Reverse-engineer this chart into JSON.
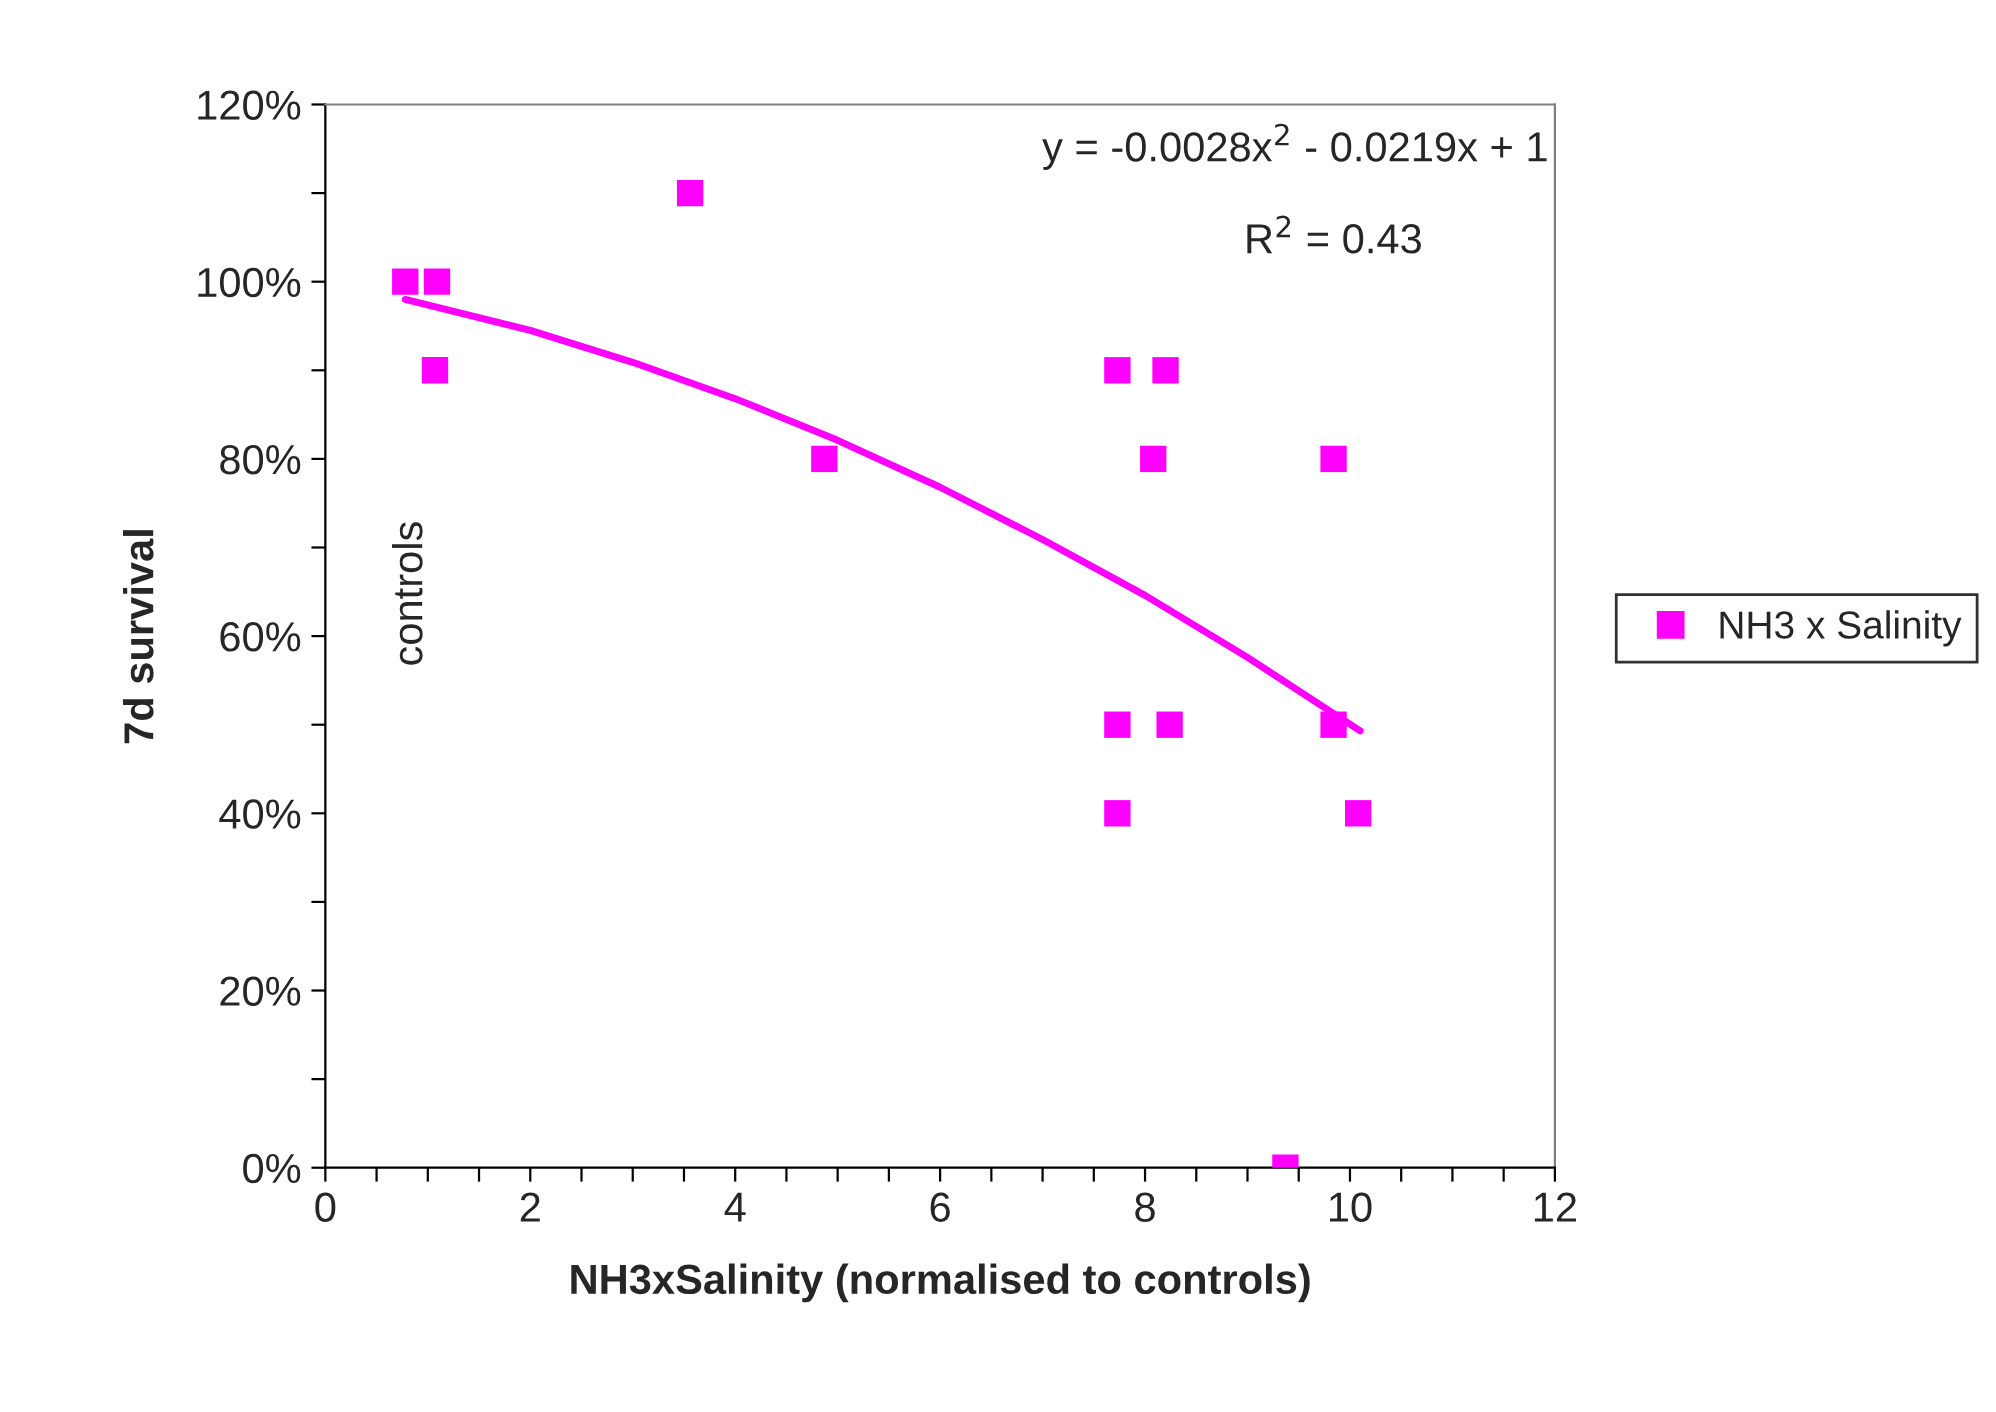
{
  "chart_data": {
    "type": "scatter",
    "xlabel": "NH3xSalinity (normalised to controls)",
    "ylabel": "7d survival",
    "series": [
      {
        "name": "NH3 x Salinity",
        "color": "#ff00ff",
        "marker": "square",
        "x": [
          0.78,
          1.09,
          1.07,
          3.56,
          4.87,
          7.73,
          8.2,
          8.08,
          9.84,
          7.73,
          8.24,
          9.84,
          7.73,
          10.08,
          9.37
        ],
        "values": [
          100,
          100,
          90,
          110,
          80,
          90,
          90,
          80,
          80,
          50,
          50,
          50,
          40,
          40,
          0
        ]
      },
      {
        "type": "line",
        "color": "#ff00ff",
        "marker": "none",
        "line_style": "solid",
        "x": [
          0.78,
          2,
          3,
          4,
          5,
          6,
          7,
          8,
          9,
          10.1
        ],
        "values": [
          98,
          94.5,
          90.9,
          86.8,
          82.1,
          76.8,
          70.9,
          64.6,
          57.6,
          49.3
        ]
      }
    ],
    "xlim": [
      0,
      12
    ],
    "ylim": [
      0,
      120
    ],
    "xticks": [
      0,
      {
        "value": 0.5,
        "label": null
      },
      2,
      {
        "value": 1,
        "label": null
      },
      4,
      {
        "value": 3,
        "label": null
      },
      6,
      {
        "value": 5,
        "label": null
      },
      8,
      {
        "value": 7,
        "label": null
      },
      10,
      {
        "value": 9,
        "label": null
      },
      12,
      {
        "value": 1.5,
        "label": null
      },
      {
        "value": 2.5,
        "label": null
      },
      {
        "value": 3.5,
        "label": null
      },
      {
        "value": 4.5,
        "label": null
      },
      {
        "value": 5.5,
        "label": null
      },
      {
        "value": 6.5,
        "label": null
      },
      {
        "value": 7.5,
        "label": null
      },
      {
        "value": 8.5,
        "label": null
      },
      {
        "value": 9.5,
        "label": null
      },
      {
        "value": 10.5,
        "label": null
      },
      {
        "value": 11,
        "label": null
      },
      {
        "value": 11.5,
        "label": null
      }
    ],
    "yticks": [
      {
        "value": 0,
        "label": "0%"
      },
      {
        "value": 10,
        "label": null
      },
      {
        "value": 20,
        "label": "20%"
      },
      {
        "value": 30,
        "label": null
      },
      {
        "value": 40,
        "label": "40%"
      },
      {
        "value": 50,
        "label": null
      },
      {
        "value": 60,
        "label": "60%"
      },
      {
        "value": 70,
        "label": null
      },
      {
        "value": 80,
        "label": "80%"
      },
      {
        "value": 90,
        "label": null
      },
      {
        "value": 100,
        "label": "100%"
      },
      {
        "value": 110,
        "label": null
      },
      {
        "value": 120,
        "label": "120%"
      }
    ],
    "annotations": [
      "y = -0.0028x$^{2}$ - 0.0219x + 1",
      "R$^{2}$ = 0.43",
      "controls"
    ],
    "grid": false,
    "legend": "right"
  }
}
